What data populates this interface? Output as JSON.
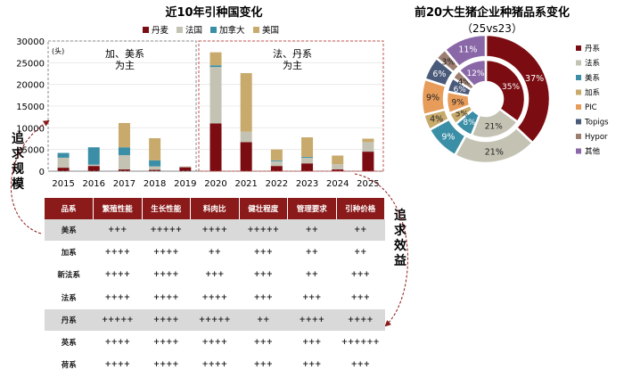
{
  "left_chart": {
    "title": "近10年引种国变化",
    "unit": "(头)",
    "legend": [
      {
        "name": "丹麦",
        "color": "#7b0d12"
      },
      {
        "name": "法国",
        "color": "#c4c3b3"
      },
      {
        "name": "加拿大",
        "color": "#3a8ea5"
      },
      {
        "name": "美国",
        "color": "#c8aa6c"
      }
    ],
    "box_left_label": "加、美系\n为主",
    "box_right_label": "法、丹系\n为主",
    "side_left_label": "追求规模",
    "side_right_label": "追求效益"
  },
  "right_chart": {
    "title": "前20大生猪企业种猪品系变化",
    "subtitle": "（25vs23）",
    "legend": [
      {
        "name": "丹系",
        "color": "#7b0d12"
      },
      {
        "name": "法系",
        "color": "#c4c3b3"
      },
      {
        "name": "美系",
        "color": "#3a8ea5"
      },
      {
        "name": "加系",
        "color": "#c8aa6c"
      },
      {
        "name": "PIC",
        "color": "#e79c5a"
      },
      {
        "name": "Topigs",
        "color": "#4a5a7a"
      },
      {
        "name": "Hypor",
        "color": "#9d7f72"
      },
      {
        "name": "其他",
        "color": "#8a68a8"
      }
    ]
  },
  "chart_data": [
    {
      "type": "bar",
      "stacked": true,
      "title": "近10年引种国变化",
      "ylabel": "(头)",
      "categories": [
        "2015",
        "2016",
        "2017",
        "2018",
        "2019",
        "2020",
        "2021",
        "2022",
        "2023",
        "2024",
        "2025"
      ],
      "ylim": [
        0,
        30000
      ],
      "yticks": [
        0,
        5000,
        10000,
        15000,
        20000,
        25000,
        30000
      ],
      "series": [
        {
          "name": "丹麦",
          "color": "#7b0d12",
          "values": [
            800,
            1200,
            400,
            300,
            900,
            11000,
            6700,
            1200,
            1800,
            400,
            4500
          ]
        },
        {
          "name": "法国",
          "color": "#c4c3b3",
          "values": [
            2300,
            300,
            3300,
            800,
            200,
            13000,
            2400,
            1100,
            1300,
            1200,
            2200
          ]
        },
        {
          "name": "加拿大",
          "color": "#3a8ea5",
          "values": [
            1100,
            4000,
            1800,
            1400,
            0,
            400,
            0,
            200,
            200,
            0,
            0
          ]
        },
        {
          "name": "美国",
          "color": "#c8aa6c",
          "values": [
            0,
            0,
            5600,
            5100,
            0,
            3000,
            13500,
            2500,
            4500,
            2000,
            800
          ]
        }
      ]
    },
    {
      "type": "pie",
      "subtype": "donut",
      "title": "前20大生猪企业种猪品系变化",
      "subtitle": "（25vs23）",
      "series": [
        {
          "name": "inner",
          "labels": [
            "丹系",
            "法系",
            "美系",
            "加系",
            "PIC",
            "Topigs",
            "Hypor",
            "其他"
          ],
          "values": [
            35,
            21,
            8,
            5,
            9,
            6,
            4,
            12
          ]
        },
        {
          "name": "outer",
          "labels": [
            "丹系",
            "法系",
            "美系",
            "加系",
            "PIC",
            "Topigs",
            "Hypor",
            "其他"
          ],
          "values": [
            37,
            21,
            9,
            4,
            9,
            6,
            3,
            11
          ]
        }
      ]
    },
    {
      "type": "table",
      "columns": [
        "品系",
        "繁殖性能",
        "生长性能",
        "料肉比",
        "健壮程度",
        "管理要求",
        "引种价格"
      ],
      "rows": [
        [
          "美系",
          "+++",
          "+++++",
          "++++",
          "+++++",
          "++",
          "++"
        ],
        [
          "加系",
          "++++",
          "++++",
          "++",
          "+++",
          "++",
          "++"
        ],
        [
          "新法系",
          "++++",
          "++++",
          "+++",
          "+++",
          "++",
          "+++"
        ],
        [
          "法系",
          "++++",
          "++++",
          "++++",
          "+++",
          "+++",
          "+++"
        ],
        [
          "丹系",
          "+++++",
          "++++",
          "+++++",
          "++",
          "++++",
          "++++"
        ],
        [
          "英系",
          "++++",
          "++++",
          "++++",
          "+++",
          "+++",
          "++++++"
        ],
        [
          "荷系",
          "++++",
          "++++",
          "++++",
          "+++",
          "+++",
          "+++"
        ]
      ],
      "highlight_rows": [
        0,
        4
      ]
    }
  ]
}
